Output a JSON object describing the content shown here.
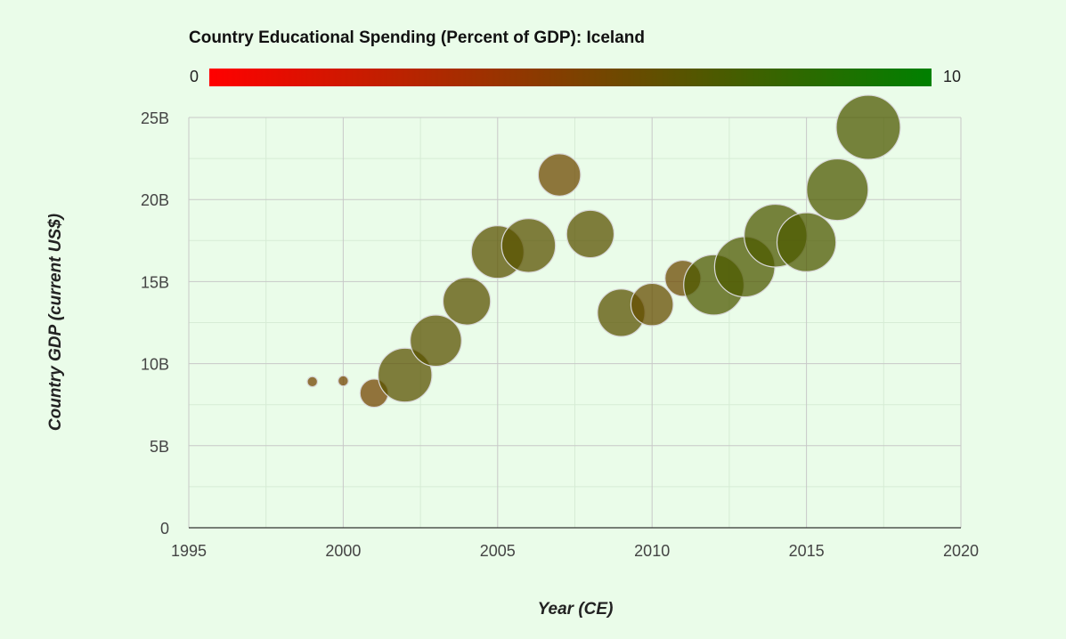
{
  "chart_data": {
    "type": "bubble",
    "title": "Country Educational Spending (Percent of GDP): Iceland",
    "xlabel": "Year (CE)",
    "ylabel": "Country GDP (current US$)",
    "xlim": [
      1995,
      2020
    ],
    "ylim": [
      0,
      25000000000
    ],
    "x_ticks": [
      "1995",
      "2000",
      "2005",
      "2010",
      "2015",
      "2020"
    ],
    "y_ticks": [
      "0",
      "5B",
      "10B",
      "15B",
      "20B",
      "25B"
    ],
    "x_tick_values": [
      1995,
      2000,
      2005,
      2010,
      2015,
      2020
    ],
    "y_tick_values": [
      0,
      5000000000,
      10000000000,
      15000000000,
      20000000000,
      25000000000
    ],
    "colorbar": {
      "min_label": "0",
      "max_label": "10",
      "min": 0,
      "max": 10,
      "min_color": "#ff0000",
      "max_color": "#008000"
    },
    "grid": true,
    "colors": {
      "point_alpha": 0.75,
      "stroke": "#d8d8d8"
    },
    "points": [
      {
        "year": 1999,
        "gdp": 8900000000,
        "size": 0.8,
        "color_value": 5.5
      },
      {
        "year": 2000,
        "gdp": 8950000000,
        "size": 0.8,
        "color_value": 5.5
      },
      {
        "year": 2001,
        "gdp": 8200000000,
        "size": 2.2,
        "color_value": 5.5
      },
      {
        "year": 2002,
        "gdp": 9300000000,
        "size": 4.2,
        "color_value": 6.5
      },
      {
        "year": 2003,
        "gdp": 11400000000,
        "size": 4.0,
        "color_value": 6.5
      },
      {
        "year": 2004,
        "gdp": 13800000000,
        "size": 3.7,
        "color_value": 6.5
      },
      {
        "year": 2005,
        "gdp": 16800000000,
        "size": 4.1,
        "color_value": 6.5
      },
      {
        "year": 2006,
        "gdp": 17200000000,
        "size": 4.2,
        "color_value": 6.5
      },
      {
        "year": 2007,
        "gdp": 21500000000,
        "size": 3.3,
        "color_value": 5.7
      },
      {
        "year": 2008,
        "gdp": 17900000000,
        "size": 3.7,
        "color_value": 6.5
      },
      {
        "year": 2009,
        "gdp": 13100000000,
        "size": 3.7,
        "color_value": 6.5
      },
      {
        "year": 2010,
        "gdp": 13600000000,
        "size": 3.3,
        "color_value": 6.0
      },
      {
        "year": 2011,
        "gdp": 15200000000,
        "size": 2.8,
        "color_value": 5.8
      },
      {
        "year": 2012,
        "gdp": 14800000000,
        "size": 4.7,
        "color_value": 7.0
      },
      {
        "year": 2013,
        "gdp": 15900000000,
        "size": 4.7,
        "color_value": 7.0
      },
      {
        "year": 2014,
        "gdp": 17800000000,
        "size": 4.9,
        "color_value": 7.0
      },
      {
        "year": 2015,
        "gdp": 17400000000,
        "size": 4.6,
        "color_value": 7.0
      },
      {
        "year": 2016,
        "gdp": 20600000000,
        "size": 4.8,
        "color_value": 7.0
      },
      {
        "year": 2017,
        "gdp": 24400000000,
        "size": 5.0,
        "color_value": 7.0
      }
    ]
  }
}
